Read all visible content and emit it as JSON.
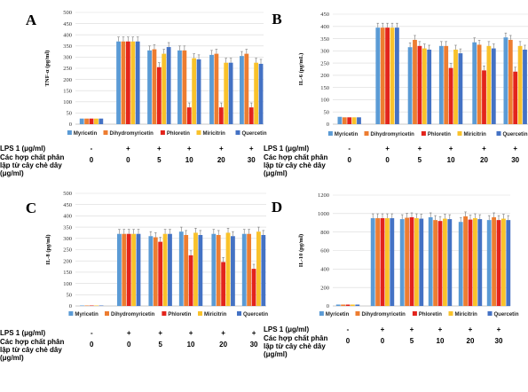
{
  "colors": {
    "Myricetin": "#5b9bd5",
    "Dihydromyricetin": "#ed7d31",
    "Phloretin": "#e3241c",
    "Miricitrin": "#f9c22b",
    "Quercetin": "#4472c4"
  },
  "groups": [
    "-",
    "0",
    "5",
    "10",
    "20",
    "30"
  ],
  "treatment": {
    "lps_label": "LPS 1 (μg/ml)",
    "lps_values": [
      "-",
      "+",
      "+",
      "+",
      "+",
      "+"
    ],
    "compound_label_lines": [
      "Các hợp chất phân",
      "lập từ cây chè dây",
      "(μg/ml)"
    ],
    "compound_values": [
      "0",
      "0",
      "5",
      "10",
      "20",
      "30"
    ]
  },
  "chart_data": [
    {
      "type": "bar",
      "panel": "A",
      "ylabel": "TNF-α (pg/ml)",
      "ylim": [
        0,
        500
      ],
      "ytick_step": 50,
      "ytick_labels": [
        "0",
        "50",
        "100",
        "150",
        "200",
        "250",
        "300",
        "350",
        "400",
        "450",
        "500"
      ],
      "grid": true,
      "legend": "bottom",
      "categories": [
        "-",
        "0",
        "5",
        "10",
        "20",
        "30"
      ],
      "series": [
        {
          "name": "Myricetin",
          "values": [
            25,
            370,
            330,
            330,
            310,
            305
          ]
        },
        {
          "name": "Dihydromyricetin",
          "values": [
            25,
            370,
            335,
            330,
            315,
            315
          ]
        },
        {
          "name": "Phloretin",
          "values": [
            25,
            370,
            255,
            75,
            75,
            75
          ]
        },
        {
          "name": "Miricitrin",
          "values": [
            25,
            370,
            315,
            295,
            275,
            275
          ]
        },
        {
          "name": "Quercetin",
          "values": [
            25,
            370,
            345,
            290,
            275,
            270
          ]
        }
      ]
    },
    {
      "type": "bar",
      "panel": "B",
      "ylabel": "IL-6 (pg/mL)",
      "ylim": [
        0,
        450
      ],
      "ytick_step": 50,
      "ytick_labels": [
        "0",
        "50",
        "100",
        "150",
        "200",
        "250",
        "300",
        "350",
        "400",
        "450"
      ],
      "grid": true,
      "legend": "bottom",
      "categories": [
        "-",
        "0",
        "5",
        "10",
        "20",
        "30"
      ],
      "series": [
        {
          "name": "Myricetin",
          "values": [
            30,
            395,
            315,
            320,
            335,
            355
          ]
        },
        {
          "name": "Dihydromyricetin",
          "values": [
            28,
            395,
            345,
            320,
            325,
            345
          ]
        },
        {
          "name": "Phloretin",
          "values": [
            28,
            395,
            320,
            230,
            220,
            215
          ]
        },
        {
          "name": "Miricitrin",
          "values": [
            28,
            395,
            310,
            305,
            320,
            320
          ]
        },
        {
          "name": "Quercetin",
          "values": [
            28,
            395,
            305,
            290,
            310,
            305
          ]
        }
      ]
    },
    {
      "type": "bar",
      "panel": "C",
      "ylabel": "IL-8 (pg/ml)",
      "ylim": [
        0,
        500
      ],
      "ytick_step": 50,
      "ytick_labels": [
        "0",
        "50",
        "100",
        "150",
        "200",
        "250",
        "300",
        "350",
        "400",
        "450",
        "500"
      ],
      "grid": true,
      "legend": "bottom",
      "categories": [
        "-",
        "0",
        "5",
        "10",
        "20",
        "30"
      ],
      "series": [
        {
          "name": "Myricetin",
          "values": [
            2,
            320,
            310,
            330,
            320,
            320
          ]
        },
        {
          "name": "Dihydromyricetin",
          "values": [
            2,
            320,
            305,
            315,
            315,
            320
          ]
        },
        {
          "name": "Phloretin",
          "values": [
            2,
            320,
            285,
            225,
            195,
            165
          ]
        },
        {
          "name": "Miricitrin",
          "values": [
            2,
            320,
            320,
            325,
            325,
            330
          ]
        },
        {
          "name": "Quercetin",
          "values": [
            2,
            320,
            320,
            315,
            310,
            315
          ]
        }
      ]
    },
    {
      "type": "bar",
      "panel": "D",
      "ylabel": "IL-10 (pg/ml)",
      "ylim": [
        0,
        1200
      ],
      "ytick_step": 200,
      "ytick_labels": [
        "0",
        "200",
        "400",
        "600",
        "800",
        "1000",
        "1200"
      ],
      "grid": true,
      "legend": "bottom",
      "categories": [
        "-",
        "0",
        "5",
        "10",
        "20",
        "30"
      ],
      "series": [
        {
          "name": "Myricetin",
          "values": [
            15,
            950,
            940,
            960,
            910,
            930
          ]
        },
        {
          "name": "Dihydromyricetin",
          "values": [
            15,
            950,
            955,
            930,
            970,
            960
          ]
        },
        {
          "name": "Phloretin",
          "values": [
            15,
            950,
            960,
            920,
            935,
            930
          ]
        },
        {
          "name": "Miricitrin",
          "values": [
            15,
            950,
            950,
            945,
            950,
            945
          ]
        },
        {
          "name": "Quercetin",
          "values": [
            15,
            950,
            945,
            940,
            940,
            930
          ]
        }
      ]
    }
  ]
}
